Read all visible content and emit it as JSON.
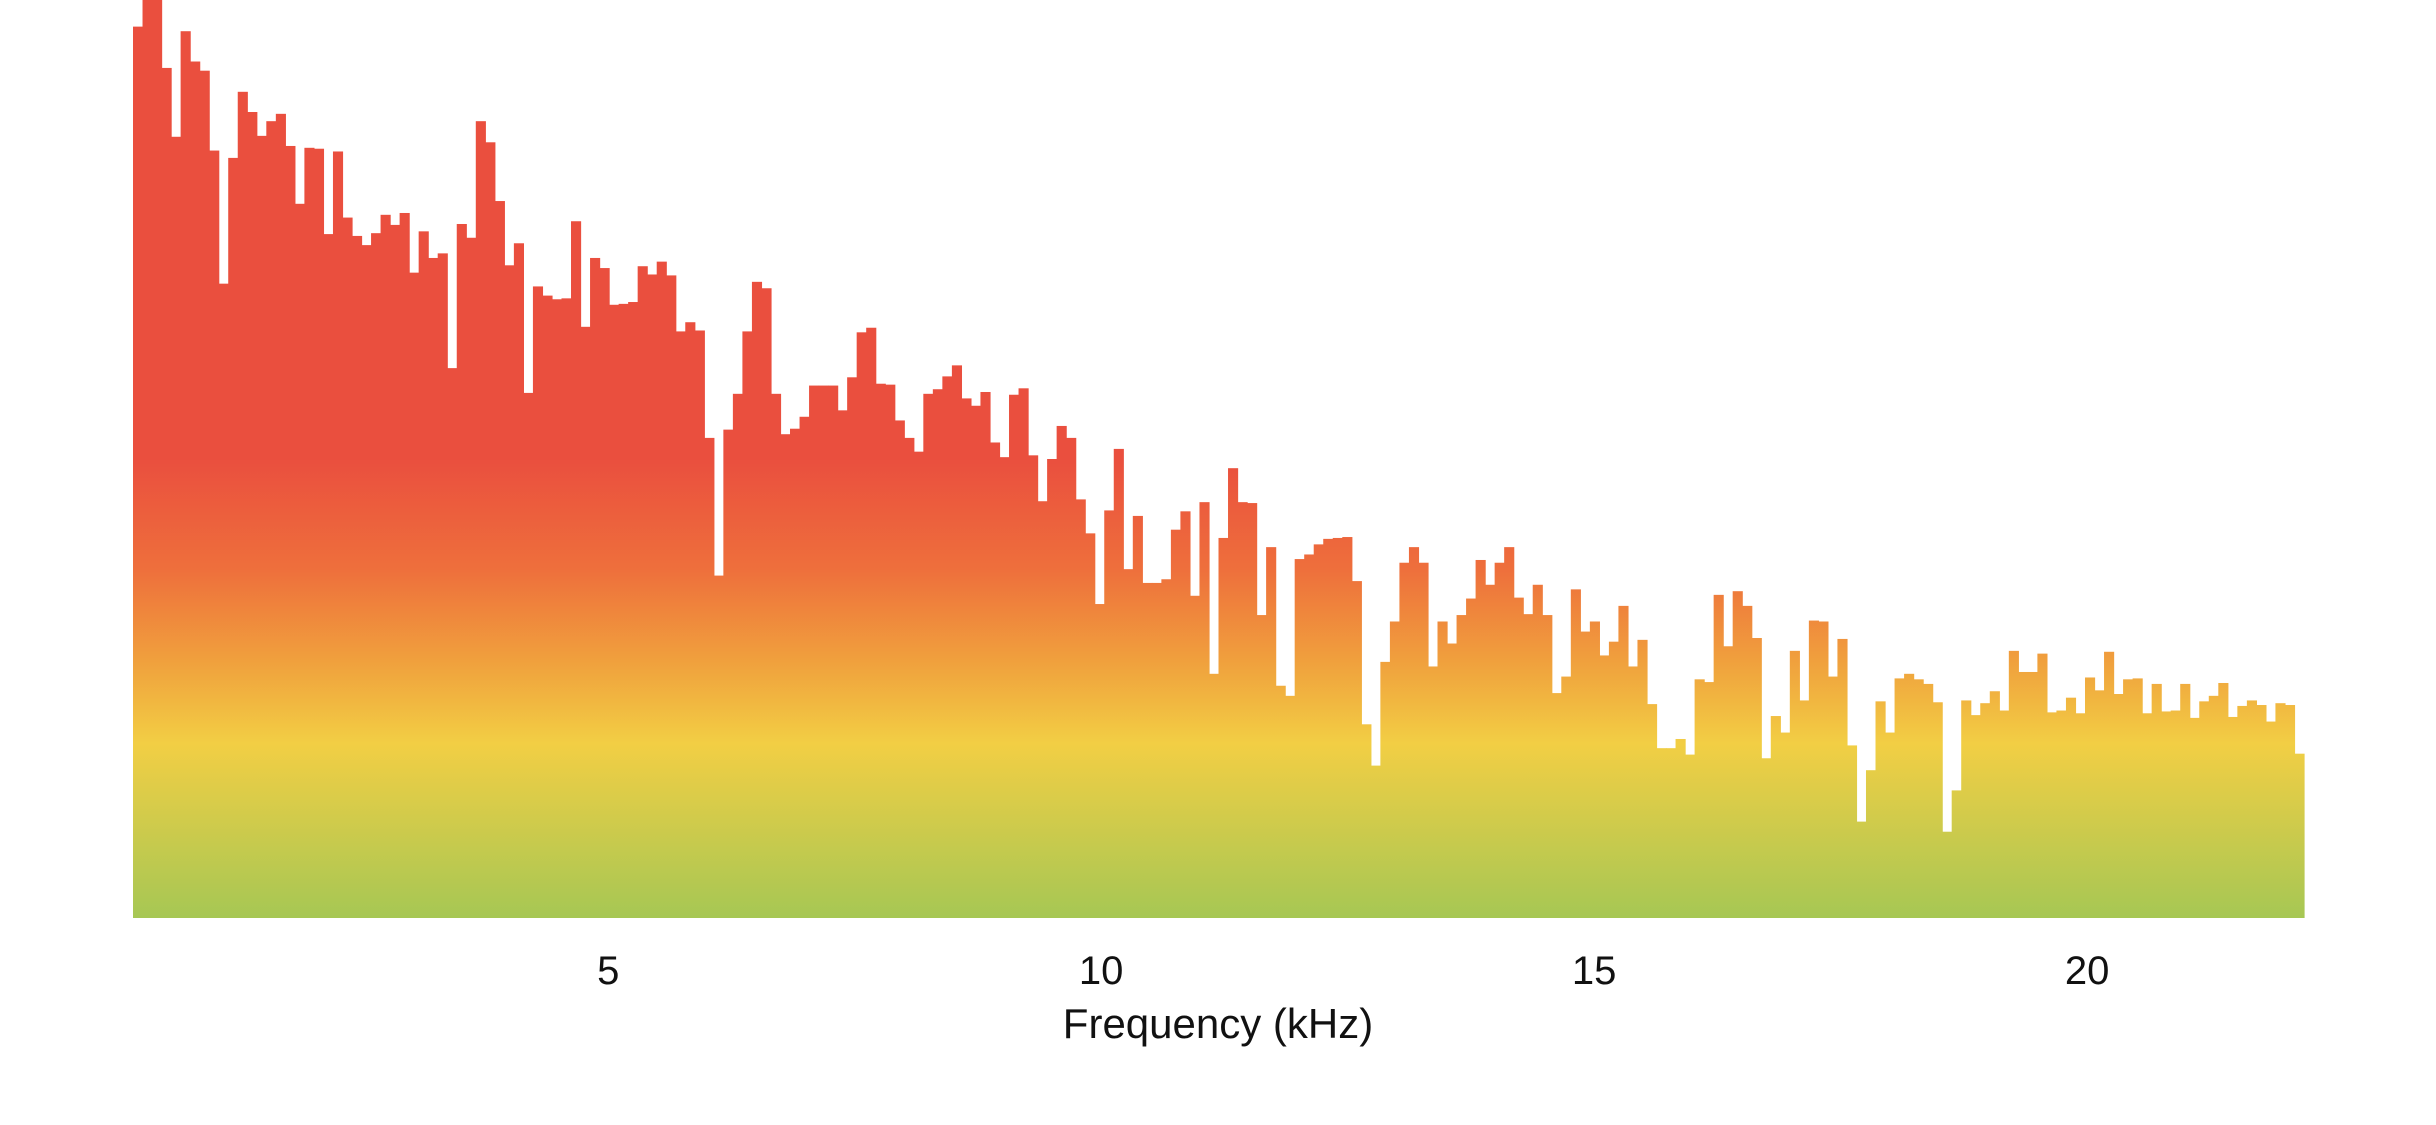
{
  "chart_data": {
    "type": "bar",
    "xlabel": "Frequency (kHz)",
    "ylabel": "",
    "title": "",
    "xlim": [
      0.18,
      22.2
    ],
    "ylim": [
      0,
      100
    ],
    "x_ticks": [
      5,
      10,
      15,
      20
    ],
    "grid": false,
    "legend": "none",
    "colors": {
      "top": "#ea4f3e",
      "upper_mid": "#ee6f3c",
      "mid": "#f0a03d",
      "yellow": "#f2ce44",
      "bottom": "#a6c754"
    },
    "values": [
      97.1,
      100,
      100,
      92.6,
      85.1,
      96.6,
      93.3,
      92.3,
      83.6,
      69.1,
      82.8,
      90.0,
      87.8,
      85.2,
      86.8,
      87.6,
      84.1,
      77.8,
      83.9,
      83.8,
      74.5,
      83.5,
      76.3,
      74.3,
      73.3,
      74.6,
      76.6,
      75.5,
      76.8,
      70.3,
      74.8,
      71.9,
      72.4,
      59.9,
      75.6,
      74.1,
      86.8,
      84.5,
      78.1,
      71.1,
      73.5,
      57.2,
      68.8,
      67.8,
      67.4,
      67.5,
      75.9,
      64.4,
      71.9,
      70.8,
      66.8,
      66.9,
      67.1,
      71.0,
      70.1,
      71.5,
      70.0,
      63.9,
      64.9,
      64.0,
      52.3,
      37.3,
      53.2,
      57.1,
      63.9,
      69.3,
      68.6,
      57.1,
      52.7,
      53.3,
      54.6,
      58.0,
      58.0,
      58.0,
      55.3,
      58.9,
      63.8,
      64.3,
      58.2,
      58.1,
      54.2,
      52.3,
      50.8,
      57.1,
      57.6,
      59.0,
      60.2,
      56.6,
      55.8,
      57.3,
      51.8,
      50.2,
      57.0,
      57.7,
      50.4,
      45.4,
      50.0,
      53.6,
      52.3,
      45.6,
      41.9,
      34.2,
      44.4,
      51.1,
      38.0,
      43.8,
      36.5,
      36.5,
      36.9,
      42.3,
      44.3,
      35.1,
      45.3,
      26.6,
      41.4,
      49.0,
      45.3,
      45.2,
      33.0,
      40.4,
      25.3,
      24.2,
      39.1,
      39.6,
      40.7,
      41.3,
      41.4,
      41.5,
      36.7,
      21.1,
      16.6,
      27.9,
      32.3,
      38.7,
      40.4,
      38.7,
      27.4,
      32.3,
      29.9,
      33.0,
      34.8,
      39.0,
      36.3,
      38.7,
      40.4,
      34.9,
      33.1,
      36.3,
      33.0,
      24.5,
      26.3,
      35.8,
      31.2,
      32.3,
      28.6,
      30.1,
      34.0,
      27.4,
      30.3,
      23.3,
      18.5,
      18.5,
      19.5,
      17.8,
      26.0,
      25.7,
      35.2,
      29.6,
      35.6,
      34.0,
      30.5,
      17.4,
      22.0,
      20.2,
      29.1,
      23.7,
      32.4,
      32.3,
      26.3,
      30.4,
      18.8,
      10.5,
      16.1,
      23.6,
      20.2,
      26.1,
      26.6,
      26.0,
      25.5,
      23.5,
      9.4,
      13.9,
      23.7,
      22.1,
      23.4,
      24.7,
      22.6,
      29.1,
      26.8,
      26.8,
      28.8,
      22.4,
      22.6,
      24.0,
      22.3,
      26.2,
      24.8,
      29.0,
      24.4,
      26.0,
      26.1,
      22.3,
      25.5,
      22.5,
      22.6,
      25.5,
      21.8,
      23.6,
      24.2,
      25.6,
      21.9,
      23.1,
      23.7,
      23.2,
      21.4,
      23.4,
      23.2,
      17.9
    ]
  }
}
